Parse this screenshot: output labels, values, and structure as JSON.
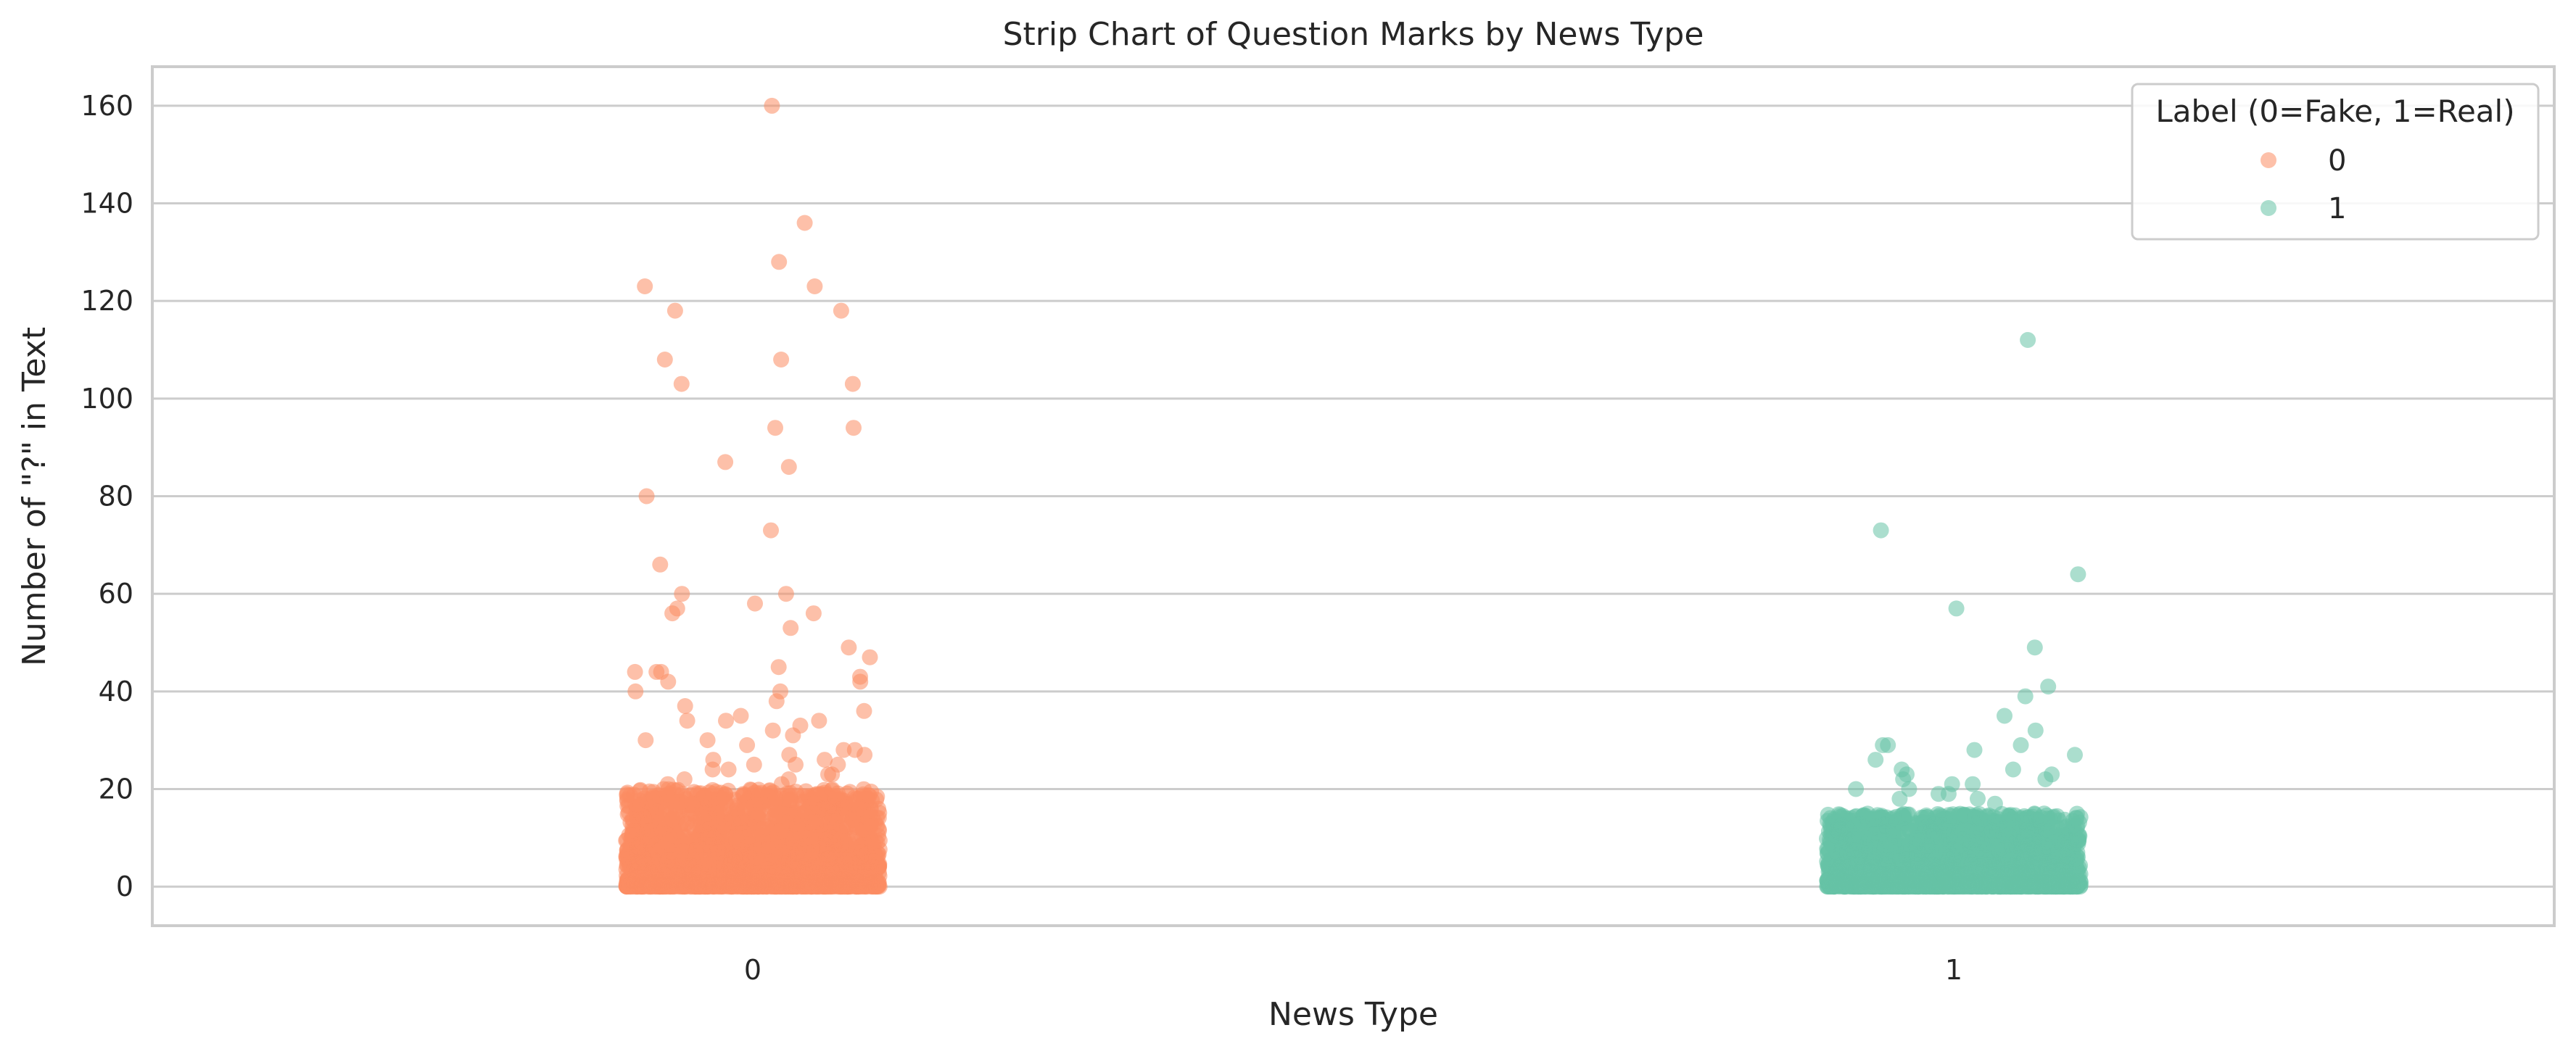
{
  "chart_data": {
    "type": "scatter",
    "subtype": "strip",
    "title": "Strip Chart of Question Marks by News Type",
    "xlabel": "News Type",
    "ylabel": "Number of \"?\" in Text",
    "categories": [
      "0",
      "1"
    ],
    "ylim": [
      -8,
      168
    ],
    "yticks": [
      0,
      20,
      40,
      60,
      80,
      100,
      120,
      140,
      160
    ],
    "grid": true,
    "legend": {
      "title": "Label (0=Fake, 1=Real)",
      "placement": "top-right",
      "entries": [
        "0",
        "1"
      ]
    },
    "series": [
      {
        "name": "0",
        "category": "0",
        "color": "#fc8d62",
        "outliers": [
          160,
          136,
          128,
          123,
          123,
          118,
          118,
          108,
          108,
          103,
          103,
          94,
          94,
          87,
          86,
          80,
          73,
          66,
          60,
          60,
          58,
          57,
          56,
          56,
          53,
          49,
          47,
          45,
          44,
          44,
          44,
          43,
          42,
          42,
          40,
          40,
          38,
          37,
          36,
          35,
          34,
          34,
          34,
          33,
          32,
          31,
          30,
          30,
          29,
          28,
          28,
          27,
          27,
          26,
          26,
          25,
          25,
          25,
          24,
          24,
          23,
          23,
          22,
          22,
          21,
          21
        ],
        "dense_range": [
          0,
          20
        ]
      },
      {
        "name": "1",
        "category": "1",
        "color": "#66c2a5",
        "outliers": [
          112,
          73,
          64,
          57,
          49,
          41,
          39,
          35,
          32,
          29,
          29,
          29,
          28,
          27,
          26,
          24,
          24,
          23,
          23,
          22,
          22,
          21,
          21,
          20,
          20,
          19,
          19,
          18,
          18,
          17
        ],
        "dense_range": [
          0,
          15
        ]
      }
    ]
  }
}
